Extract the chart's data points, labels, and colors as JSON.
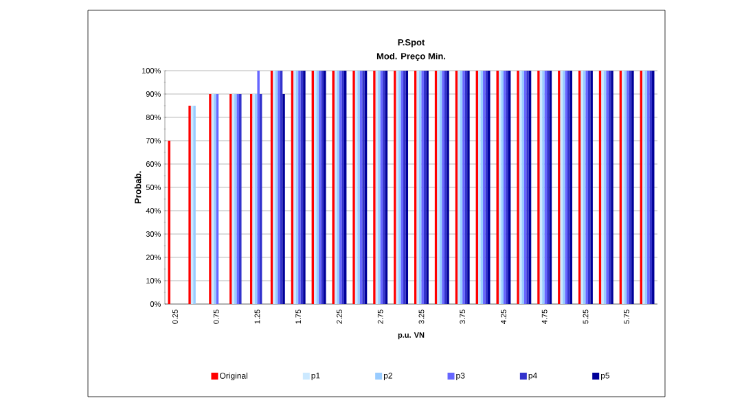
{
  "chart_data": {
    "type": "bar",
    "title": "P.Spot",
    "subtitle": "Mod. Preço Min.",
    "xlabel": "p.u. VN",
    "ylabel": "Probab.",
    "categories": [
      "0.25",
      null,
      "0.75",
      null,
      "1.25",
      null,
      "1.75",
      null,
      "2.25",
      null,
      "2.75",
      null,
      "3.25",
      null,
      "3.75",
      null,
      "4.25",
      null,
      "4.75",
      null,
      "5.25",
      null,
      "5.75",
      null
    ],
    "series": [
      {
        "name": "Original",
        "color": "#ff0000",
        "values": [
          70,
          85,
          90,
          90,
          90,
          100,
          100,
          100,
          100,
          100,
          100,
          100,
          100,
          100,
          100,
          100,
          100,
          100,
          100,
          100,
          100,
          100,
          100,
          100
        ]
      },
      {
        "name": "p1",
        "color": "#cce9ff",
        "values": [
          0,
          85,
          90,
          90,
          90,
          100,
          100,
          100,
          100,
          100,
          100,
          100,
          100,
          100,
          100,
          100,
          100,
          100,
          100,
          100,
          100,
          100,
          100,
          100
        ]
      },
      {
        "name": "p2",
        "color": "#99ccff",
        "values": [
          0,
          85,
          90,
          90,
          90,
          100,
          100,
          100,
          100,
          100,
          100,
          100,
          100,
          100,
          100,
          100,
          100,
          100,
          100,
          100,
          100,
          100,
          100,
          100
        ]
      },
      {
        "name": "p3",
        "color": "#6666ff",
        "values": [
          0,
          0,
          90,
          90,
          100,
          100,
          100,
          100,
          100,
          100,
          100,
          100,
          100,
          100,
          100,
          100,
          100,
          100,
          100,
          100,
          100,
          100,
          100,
          100
        ]
      },
      {
        "name": "p4",
        "color": "#3333cc",
        "values": [
          0,
          0,
          0,
          90,
          90,
          100,
          100,
          100,
          100,
          100,
          100,
          100,
          100,
          100,
          100,
          100,
          100,
          100,
          100,
          100,
          100,
          100,
          100,
          100
        ]
      },
      {
        "name": "p5",
        "color": "#000099",
        "values": [
          0,
          0,
          0,
          0,
          0,
          90,
          100,
          100,
          100,
          100,
          100,
          100,
          100,
          100,
          100,
          100,
          100,
          100,
          100,
          100,
          100,
          100,
          100,
          100
        ]
      }
    ],
    "ylim": [
      0,
      100
    ],
    "yticks": [
      {
        "value": 0,
        "label": "0%"
      },
      {
        "value": 10,
        "label": "10%"
      },
      {
        "value": 20,
        "label": "20%"
      },
      {
        "value": 30,
        "label": "30%"
      },
      {
        "value": 40,
        "label": "40%"
      },
      {
        "value": 50,
        "label": "50%"
      },
      {
        "value": 60,
        "label": "60%"
      },
      {
        "value": 70,
        "label": "70%"
      },
      {
        "value": 80,
        "label": "80%"
      },
      {
        "value": 90,
        "label": "90%"
      },
      {
        "value": 100,
        "label": "100%"
      }
    ],
    "grid": "y",
    "legend": "bottom"
  }
}
